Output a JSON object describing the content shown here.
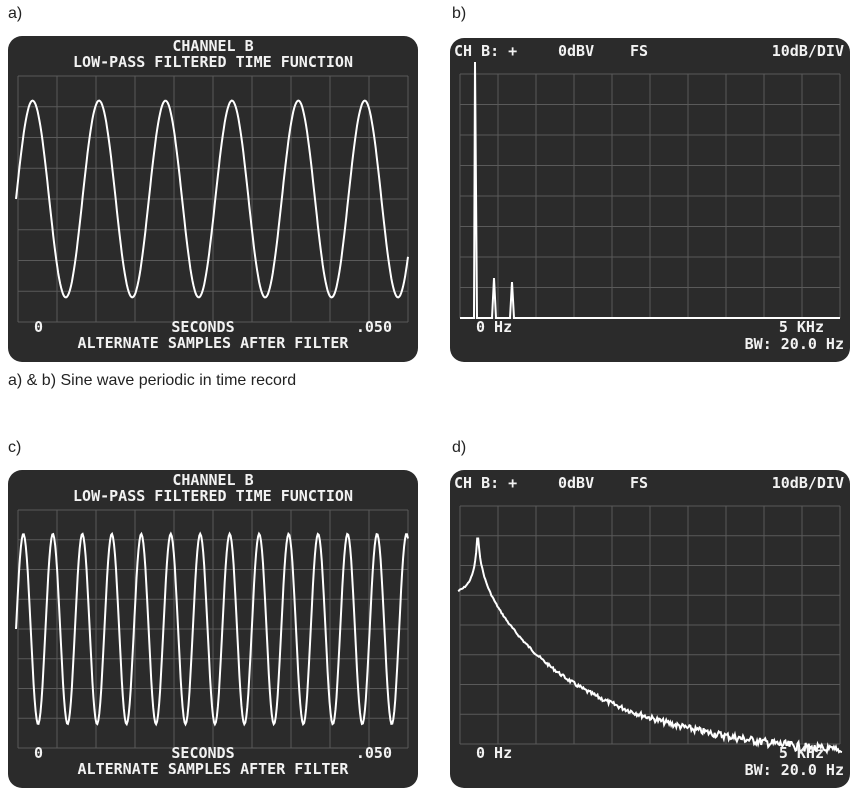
{
  "panels": [
    {
      "label": "a)",
      "screen": {
        "header": [
          "CHANNEL B",
          "LOW-PASS FILTERED TIME FUNCTION"
        ],
        "footer": {
          "start": "0",
          "unit": "SECONDS",
          "end": ".050",
          "note": "ALTERNATE SAMPLES AFTER FILTER"
        }
      }
    },
    {
      "label": "b)",
      "screen": {
        "header": {
          "channel": "CH B: +",
          "level": "0dBV",
          "ref": "FS",
          "scale": "10dB/DIV"
        },
        "footer": {
          "start": "0 Hz",
          "end": "5 KHz",
          "bw": "BW: 20.0 Hz"
        }
      }
    },
    {
      "label": "c)",
      "screen": {
        "header": [
          "CHANNEL B",
          "LOW-PASS FILTERED TIME FUNCTION"
        ],
        "footer": {
          "start": "0",
          "unit": "SECONDS",
          "end": ".050",
          "note": "ALTERNATE SAMPLES AFTER FILTER"
        }
      }
    },
    {
      "label": "d)",
      "screen": {
        "header": {
          "channel": "CH B: +",
          "level": "0dBV",
          "ref": "FS",
          "scale": "10dB/DIV"
        },
        "footer": {
          "start": "0 Hz",
          "end": "5 KHz",
          "bw": "BW: 20.0 Hz"
        }
      }
    }
  ],
  "caption": "a) & b) Sine wave periodic in time record"
}
